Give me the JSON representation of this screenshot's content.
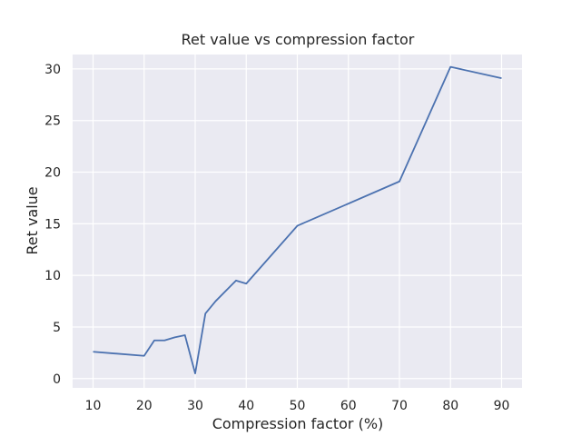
{
  "chart_data": {
    "type": "line",
    "title": "Ret value vs compression factor",
    "xlabel": "Compression factor (%)",
    "ylabel": "Ret value",
    "xlim": [
      6,
      94
    ],
    "ylim": [
      -0.9,
      31.4
    ],
    "xticks": [
      10,
      20,
      30,
      40,
      50,
      60,
      70,
      80,
      90
    ],
    "yticks": [
      0,
      5,
      10,
      15,
      20,
      25,
      30
    ],
    "grid": true,
    "series": [
      {
        "color": "#4c72b0",
        "x": [
          10,
          20,
          22,
          24,
          26,
          28,
          30,
          32,
          34,
          38,
          40,
          50,
          70,
          80,
          90
        ],
        "y": [
          2.6,
          2.2,
          3.7,
          3.7,
          4.0,
          4.2,
          0.5,
          6.3,
          7.5,
          9.5,
          9.2,
          14.8,
          19.1,
          30.2,
          29.1
        ]
      }
    ],
    "background": "#eaeaf2",
    "gridcolor": "#ffffff"
  }
}
